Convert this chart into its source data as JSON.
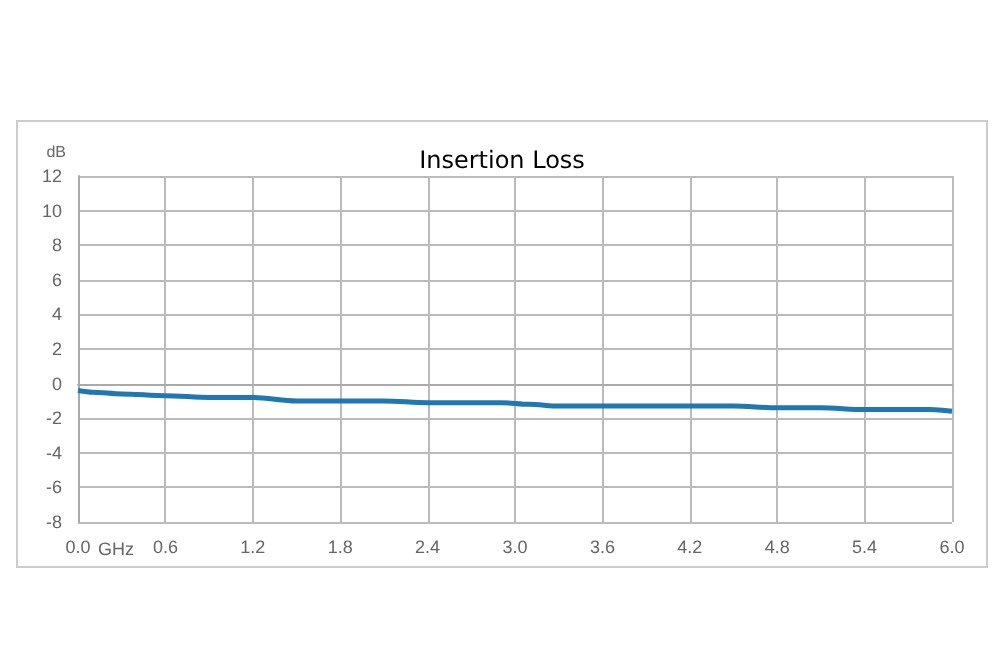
{
  "chart_data": {
    "type": "line",
    "title": "Insertion Loss",
    "xlabel": "GHz",
    "ylabel": "dB",
    "x": [
      0,
      0.1,
      0.3,
      0.6,
      0.9,
      1.2,
      1.5,
      1.8,
      2.1,
      2.4,
      2.7,
      2.9,
      3.1,
      3.3,
      3.6,
      3.9,
      4.2,
      4.5,
      4.8,
      5.1,
      5.4,
      5.7,
      5.85,
      6.0
    ],
    "series": [
      {
        "color": "#1f77b4",
        "values": [
          -0.4,
          -0.5,
          -0.6,
          -0.7,
          -0.8,
          -0.8,
          -1.0,
          -1.0,
          -1.0,
          -1.1,
          -1.1,
          -1.1,
          -1.2,
          -1.3,
          -1.3,
          -1.3,
          -1.3,
          -1.3,
          -1.4,
          -1.4,
          -1.5,
          -1.5,
          -1.5,
          -1.6
        ]
      }
    ],
    "xlim": [
      0,
      6
    ],
    "xticks": [
      {
        "value": 0,
        "label": "0.0"
      },
      0.6,
      1.2,
      1.8,
      2.4,
      {
        "value": 3,
        "label": "3.0"
      },
      3.6,
      4.2,
      4.8,
      5.4,
      {
        "value": 6,
        "label": "6.0"
      }
    ],
    "ylim": [
      -8,
      12
    ],
    "yticks": [
      -8,
      -6,
      -4,
      -2,
      0,
      2,
      4,
      6,
      8,
      10,
      12
    ],
    "grid": true,
    "marker": "none",
    "line_style": "solid"
  }
}
